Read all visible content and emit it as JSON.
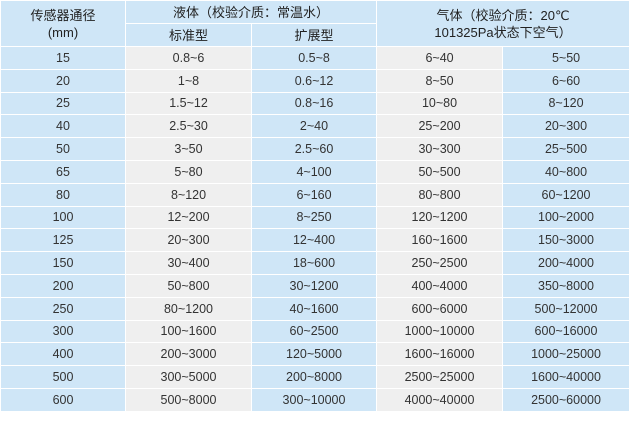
{
  "header": {
    "diameter": "传感器通径",
    "diameter_unit": "(mm)",
    "liquid": "液体（校验介质：常温水）",
    "liquid_standard": "标准型",
    "liquid_extended": "扩展型",
    "gas_line1": "气体（校验介质：20℃",
    "gas_line2": "101325Pa状态下空气）"
  },
  "rows": [
    [
      "15",
      "0.8~6",
      "0.5~8",
      "6~40",
      "5~50"
    ],
    [
      "20",
      "1~8",
      "0.6~12",
      "8~50",
      "6~60"
    ],
    [
      "25",
      "1.5~12",
      "0.8~16",
      "10~80",
      "8~120"
    ],
    [
      "40",
      "2.5~30",
      "2~40",
      "25~200",
      "20~300"
    ],
    [
      "50",
      "3~50",
      "2.5~60",
      "30~300",
      "25~500"
    ],
    [
      "65",
      "5~80",
      "4~100",
      "50~500",
      "40~800"
    ],
    [
      "80",
      "8~120",
      "6~160",
      "80~800",
      "60~1200"
    ],
    [
      "100",
      "12~200",
      "8~250",
      "120~1200",
      "100~2000"
    ],
    [
      "125",
      "20~300",
      "12~400",
      "160~1600",
      "150~3000"
    ],
    [
      "150",
      "30~400",
      "18~600",
      "250~2500",
      "200~4000"
    ],
    [
      "200",
      "50~800",
      "30~1200",
      "400~4000",
      "350~8000"
    ],
    [
      "250",
      "80~1200",
      "40~1600",
      "600~6000",
      "500~12000"
    ],
    [
      "300",
      "100~1600",
      "60~2500",
      "1000~10000",
      "600~16000"
    ],
    [
      "400",
      "200~3000",
      "120~5000",
      "1600~16000",
      "1000~25000"
    ],
    [
      "500",
      "300~5000",
      "200~8000",
      "2500~25000",
      "1600~40000"
    ],
    [
      "600",
      "500~8000",
      "300~10000",
      "4000~40000",
      "2500~60000"
    ]
  ],
  "colors": {
    "blue": "#cfe6f7",
    "gray": "#efefef"
  }
}
